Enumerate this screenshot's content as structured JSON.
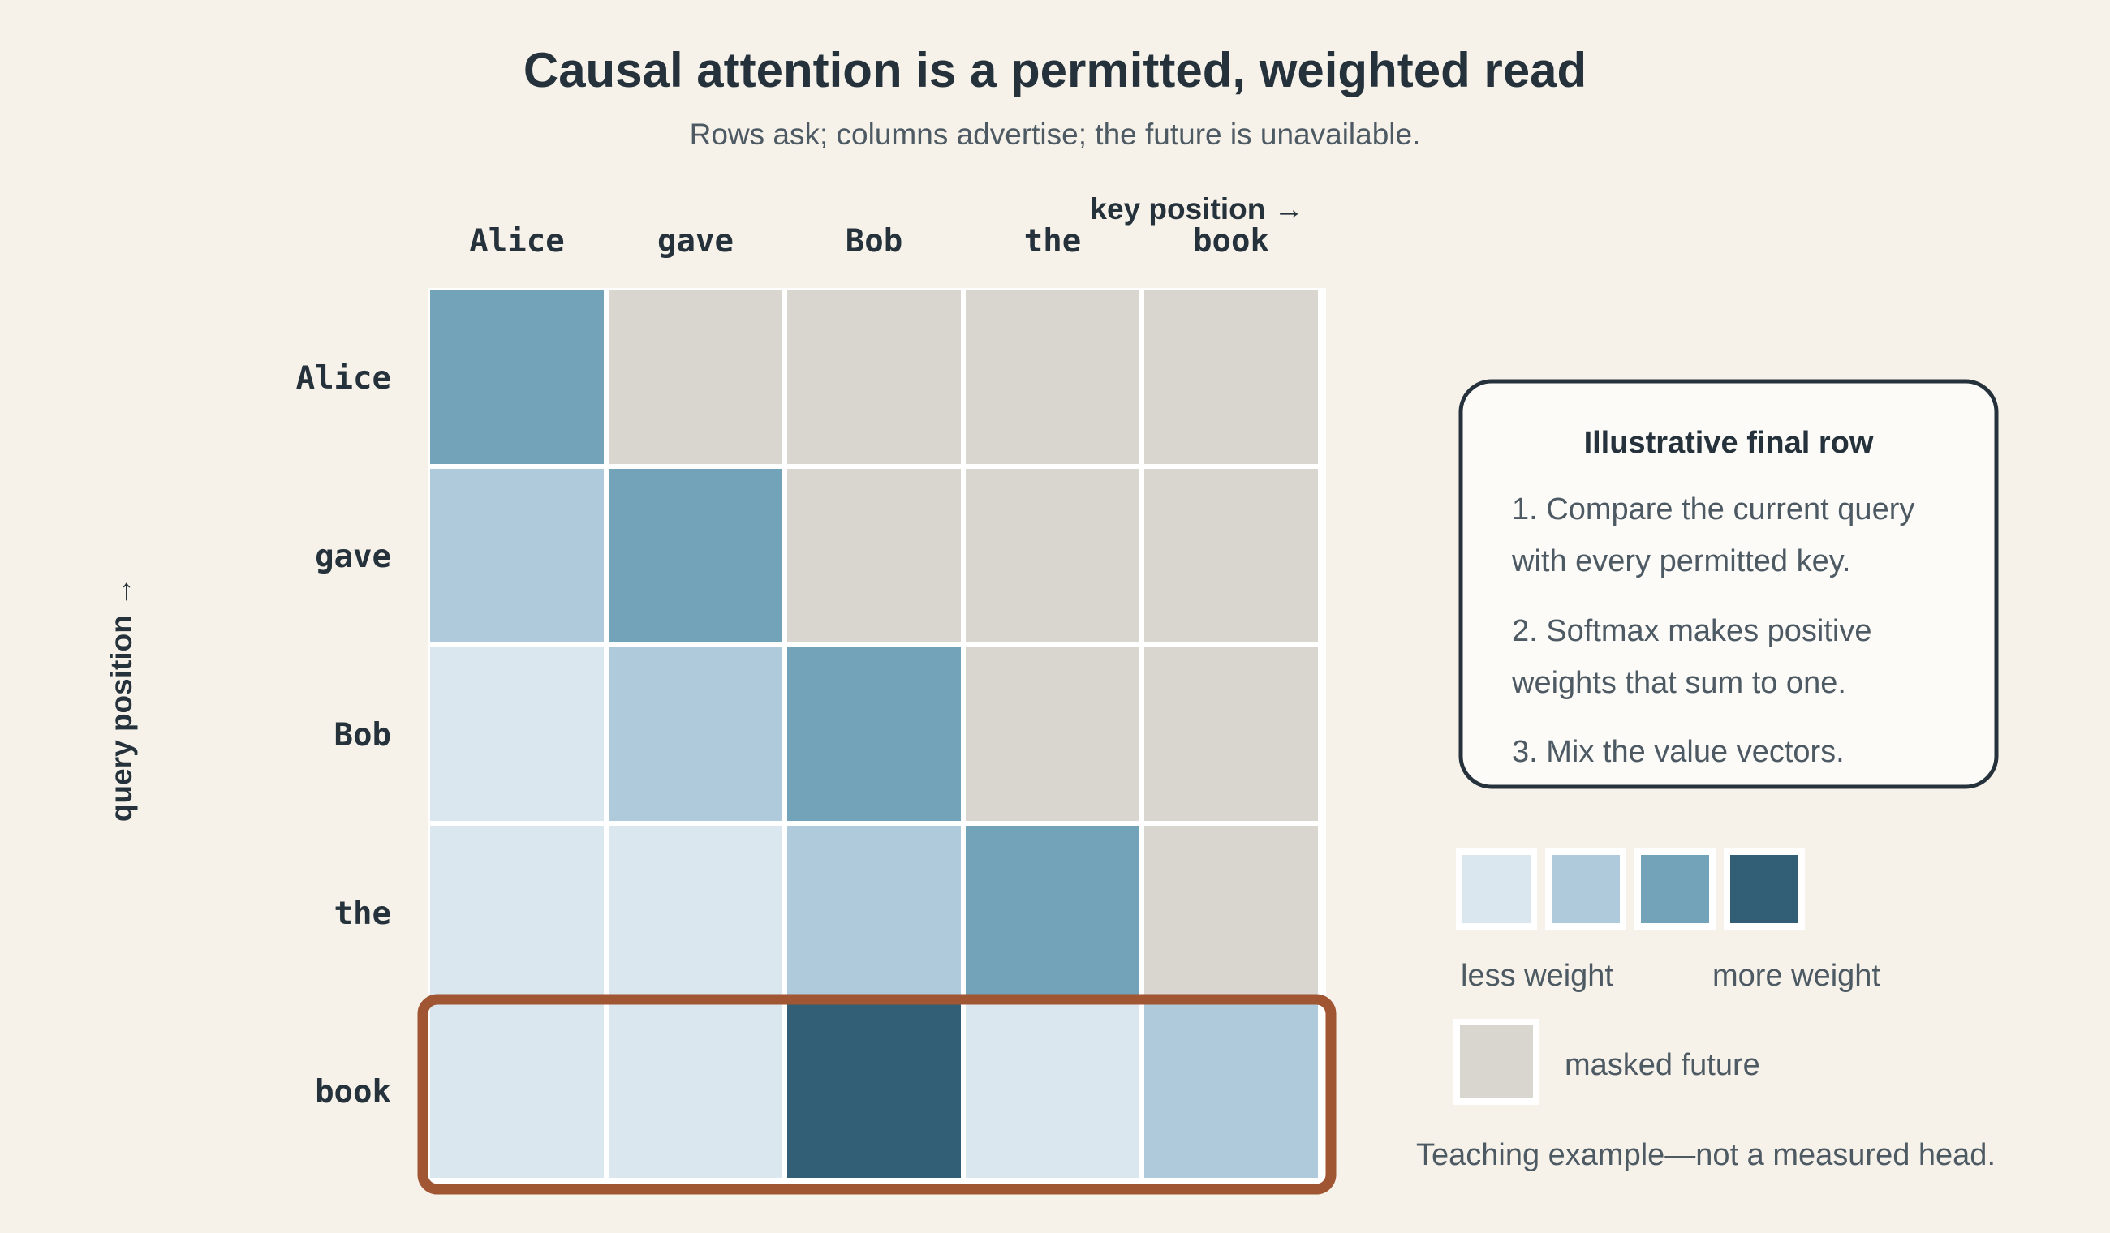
{
  "title": "Causal attention is a permitted, weighted read",
  "subtitle": "Rows ask; columns advertise; the future is unavailable.",
  "x_axis_label": "key position →",
  "y_axis_label": "query position →",
  "tokens": [
    "Alice",
    "gave",
    "Bob",
    "the",
    "book"
  ],
  "note": {
    "title": "Illustrative final row",
    "lines": [
      "1. Compare the current query",
      "with every permitted key.",
      "2. Softmax makes positive",
      "weights that sum to one.",
      "3. Mix the value vectors."
    ]
  },
  "legend": {
    "less_label": "less weight",
    "more_label": "more weight",
    "masked_label": "masked future",
    "swatch_levels": [
      1,
      2,
      3,
      4
    ]
  },
  "footnote": "Teaching example—not a measured head.",
  "colors": {
    "background": "#f6f2ea",
    "masked": "#d9d6cf",
    "level_1": "#dae7ef",
    "level_2": "#afcbdb",
    "level_3": "#72a3b9",
    "level_4": "#325f76",
    "highlight": "#a05633",
    "note_border": "#25323b",
    "note_fill": "#fcfbf8"
  },
  "chart_data": {
    "type": "heatmap",
    "rows": [
      "Alice",
      "gave",
      "Bob",
      "the",
      "book"
    ],
    "columns": [
      "Alice",
      "gave",
      "Bob",
      "the",
      "book"
    ],
    "weight_levels": [
      [
        3,
        0,
        0,
        0,
        0
      ],
      [
        2,
        3,
        0,
        0,
        0
      ],
      [
        1,
        2,
        3,
        0,
        0
      ],
      [
        1,
        1,
        2,
        3,
        0
      ],
      [
        1,
        1,
        4,
        1,
        2
      ]
    ],
    "level_scale": "0 = masked future, 1 = less weight, 4 = more weight",
    "highlighted_row": "book"
  }
}
